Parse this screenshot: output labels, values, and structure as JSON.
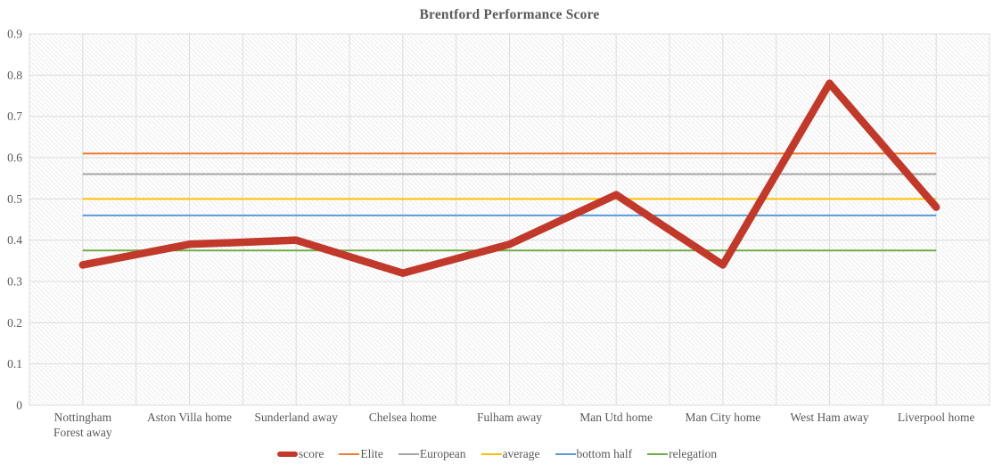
{
  "chart_data": {
    "type": "line",
    "title": "Brentford Performance Score",
    "categories": [
      [
        "Nottingham",
        "Forest away"
      ],
      "Aston Villa home",
      "Sunderland away",
      "Chelsea home",
      "Fulham away",
      "Man Utd home",
      "Man City home",
      "West Ham away",
      "Liverpool home"
    ],
    "series": [
      {
        "name": "score",
        "kind": "data",
        "color": "#c0392b",
        "values": [
          0.34,
          0.39,
          0.4,
          0.32,
          0.39,
          0.51,
          0.34,
          0.78,
          0.48
        ]
      },
      {
        "name": "Elite",
        "kind": "reference",
        "color": "#ed7d31",
        "constant": 0.61
      },
      {
        "name": "European",
        "kind": "reference",
        "color": "#a5a5a5",
        "constant": 0.56
      },
      {
        "name": "average",
        "kind": "reference",
        "color": "#ffc000",
        "constant": 0.5
      },
      {
        "name": "bottom half",
        "kind": "reference",
        "color": "#5b9bd5",
        "constant": 0.46
      },
      {
        "name": "relegation",
        "kind": "reference",
        "color": "#70ad47",
        "constant": 0.375
      }
    ],
    "ylim": [
      0,
      0.9
    ],
    "ytick_step": 0.1,
    "ytick_labels": [
      "0",
      "0.1",
      "0.2",
      "0.3",
      "0.4",
      "0.5",
      "0.6",
      "0.7",
      "0.8",
      "0.9"
    ],
    "xlabel": "",
    "ylabel": "",
    "grid": {
      "horizontal": true,
      "vertical": true,
      "background": "diagonal-hatch"
    },
    "legend_position": "bottom"
  },
  "styles": {
    "text_color": "#595959",
    "grid_color": "#dcdcdc",
    "hatch_color": "#ececec",
    "background": "#ffffff"
  }
}
